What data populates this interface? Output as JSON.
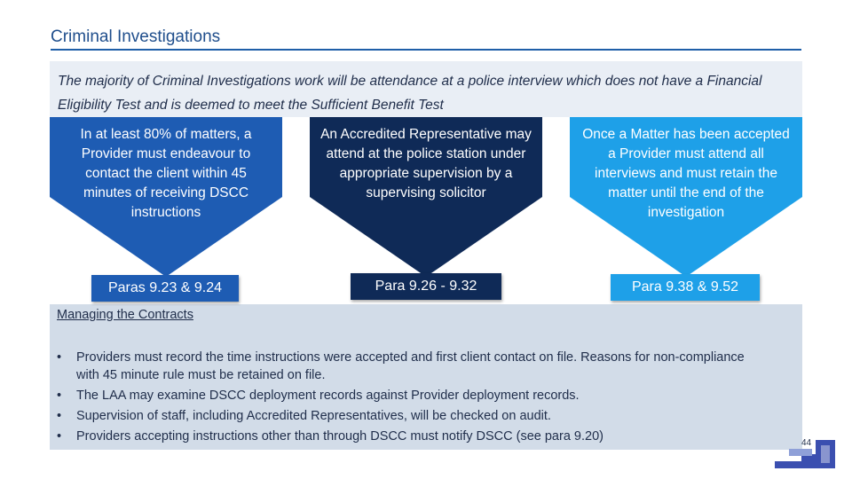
{
  "slide": {
    "title": "Criminal Investigations",
    "intro": "The majority of Criminal Investigations work will be attendance at a police interview which does not have a Financial Eligibility Test and is deemed to meet the Sufficient Benefit Test",
    "page_number": "44"
  },
  "arrows": [
    {
      "text": "In at least 80% of matters, a Provider must endeavour to contact the client within 45 minutes of receiving DSCC instructions",
      "para": "Paras 9.23 & 9.24",
      "color": "#1e5cb3"
    },
    {
      "text": "An Accredited Representative may attend at the police station under appropriate supervision by a supervising solicitor",
      "para": "Para 9.26 - 9.32",
      "color": "#0f2a57"
    },
    {
      "text": "Once a Matter has been accepted a Provider must attend all interviews and must retain the matter until the end of the investigation",
      "para": "Para 9.38 & 9.52",
      "color": "#1ea0e8"
    }
  ],
  "contracts": {
    "heading": "Managing the Contracts",
    "bullets": [
      "Providers must record the time instructions were accepted and first client contact on file. Reasons for non-compliance with 45 minute rule must be retained on file.",
      "The LAA may examine DSCC deployment records against Provider deployment records.",
      "Supervision of staff, including Accredited Representatives, will be checked on audit.",
      "Providers accepting instructions other than through DSCC must notify DSCC (see para 9.20)"
    ]
  }
}
